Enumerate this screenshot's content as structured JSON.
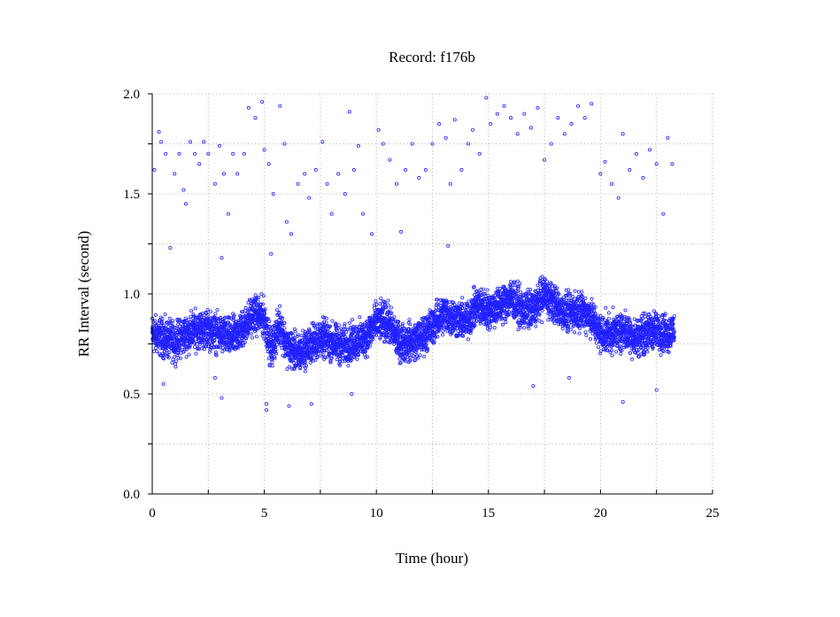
{
  "chart_data": {
    "type": "scatter",
    "title": "Record:  f176b",
    "xlabel": "Time (hour)",
    "ylabel": "RR Interval (second)",
    "xlim": [
      0,
      25
    ],
    "ylim": [
      0,
      2.0
    ],
    "x_ticks": [
      0,
      5,
      10,
      15,
      20,
      25
    ],
    "x_tick_labels": [
      "0",
      "5",
      "10",
      "15",
      "20",
      "25"
    ],
    "y_ticks": [
      0.0,
      0.5,
      1.0,
      1.5,
      2.0
    ],
    "y_tick_labels": [
      "0.0",
      "0.5",
      "1.0",
      "1.5",
      "2.0"
    ],
    "grid": true,
    "marker_color": "#2020ff",
    "series": [
      {
        "baseline_trend": [
          [
            0.0,
            0.8
          ],
          [
            0.5,
            0.78
          ],
          [
            1.0,
            0.76
          ],
          [
            1.5,
            0.8
          ],
          [
            2.0,
            0.82
          ],
          [
            2.5,
            0.82
          ],
          [
            3.0,
            0.8
          ],
          [
            3.5,
            0.78
          ],
          [
            4.0,
            0.82
          ],
          [
            4.5,
            0.9
          ],
          [
            5.0,
            0.88
          ],
          [
            5.3,
            0.72
          ],
          [
            5.7,
            0.85
          ],
          [
            6.0,
            0.74
          ],
          [
            6.5,
            0.7
          ],
          [
            7.0,
            0.74
          ],
          [
            7.5,
            0.78
          ],
          [
            8.0,
            0.76
          ],
          [
            8.5,
            0.74
          ],
          [
            9.0,
            0.76
          ],
          [
            9.5,
            0.78
          ],
          [
            10.0,
            0.86
          ],
          [
            10.5,
            0.86
          ],
          [
            11.0,
            0.76
          ],
          [
            11.5,
            0.76
          ],
          [
            12.0,
            0.78
          ],
          [
            12.5,
            0.84
          ],
          [
            13.0,
            0.9
          ],
          [
            13.5,
            0.88
          ],
          [
            14.0,
            0.86
          ],
          [
            14.5,
            0.94
          ],
          [
            15.0,
            0.92
          ],
          [
            15.5,
            0.94
          ],
          [
            16.0,
            0.98
          ],
          [
            16.5,
            0.92
          ],
          [
            17.0,
            0.92
          ],
          [
            17.5,
            1.0
          ],
          [
            18.0,
            0.94
          ],
          [
            18.5,
            0.9
          ],
          [
            19.0,
            0.92
          ],
          [
            19.5,
            0.9
          ],
          [
            20.0,
            0.8
          ],
          [
            20.5,
            0.8
          ],
          [
            21.0,
            0.82
          ],
          [
            21.5,
            0.78
          ],
          [
            22.0,
            0.8
          ],
          [
            22.5,
            0.82
          ],
          [
            23.0,
            0.8
          ],
          [
            23.3,
            0.82
          ]
        ],
        "outliers": [
          [
            0.1,
            1.62
          ],
          [
            0.3,
            1.81
          ],
          [
            0.4,
            1.76
          ],
          [
            0.6,
            1.7
          ],
          [
            0.8,
            1.23
          ],
          [
            1.0,
            1.6
          ],
          [
            1.2,
            1.7
          ],
          [
            1.4,
            1.52
          ],
          [
            1.5,
            1.45
          ],
          [
            1.7,
            1.76
          ],
          [
            1.9,
            1.7
          ],
          [
            2.1,
            1.65
          ],
          [
            2.3,
            1.76
          ],
          [
            2.5,
            1.7
          ],
          [
            2.8,
            1.55
          ],
          [
            3.0,
            1.74
          ],
          [
            3.2,
            1.6
          ],
          [
            3.4,
            1.4
          ],
          [
            3.6,
            1.7
          ],
          [
            3.8,
            1.6
          ],
          [
            4.1,
            1.7
          ],
          [
            4.3,
            1.93
          ],
          [
            4.6,
            1.88
          ],
          [
            4.9,
            1.96
          ],
          [
            5.0,
            1.72
          ],
          [
            5.2,
            1.65
          ],
          [
            5.4,
            1.5
          ],
          [
            5.7,
            1.94
          ],
          [
            5.9,
            1.75
          ],
          [
            6.0,
            1.36
          ],
          [
            6.2,
            1.3
          ],
          [
            6.5,
            1.55
          ],
          [
            6.8,
            1.6
          ],
          [
            7.0,
            1.48
          ],
          [
            7.3,
            1.62
          ],
          [
            7.6,
            1.76
          ],
          [
            7.8,
            1.55
          ],
          [
            8.0,
            1.4
          ],
          [
            8.3,
            1.6
          ],
          [
            8.6,
            1.5
          ],
          [
            8.8,
            1.91
          ],
          [
            9.0,
            1.62
          ],
          [
            9.2,
            1.74
          ],
          [
            9.4,
            1.4
          ],
          [
            9.8,
            1.3
          ],
          [
            10.1,
            1.82
          ],
          [
            10.3,
            1.75
          ],
          [
            10.6,
            1.67
          ],
          [
            10.9,
            1.55
          ],
          [
            11.1,
            1.31
          ],
          [
            11.3,
            1.62
          ],
          [
            11.6,
            1.75
          ],
          [
            11.9,
            1.58
          ],
          [
            12.2,
            1.62
          ],
          [
            12.5,
            1.75
          ],
          [
            12.8,
            1.85
          ],
          [
            13.1,
            1.78
          ],
          [
            13.3,
            1.55
          ],
          [
            13.5,
            1.87
          ],
          [
            13.8,
            1.62
          ],
          [
            14.1,
            1.75
          ],
          [
            14.3,
            1.82
          ],
          [
            14.6,
            1.7
          ],
          [
            14.9,
            1.98
          ],
          [
            15.1,
            1.85
          ],
          [
            15.4,
            1.9
          ],
          [
            15.7,
            1.94
          ],
          [
            16.0,
            1.88
          ],
          [
            16.3,
            1.8
          ],
          [
            16.6,
            1.9
          ],
          [
            16.9,
            1.83
          ],
          [
            17.2,
            1.93
          ],
          [
            17.5,
            1.67
          ],
          [
            17.8,
            1.75
          ],
          [
            18.1,
            1.88
          ],
          [
            18.4,
            1.8
          ],
          [
            18.7,
            1.85
          ],
          [
            19.0,
            1.94
          ],
          [
            19.3,
            1.88
          ],
          [
            19.6,
            1.95
          ],
          [
            20.0,
            1.6
          ],
          [
            20.2,
            1.66
          ],
          [
            20.5,
            1.55
          ],
          [
            20.8,
            1.48
          ],
          [
            21.0,
            1.8
          ],
          [
            21.3,
            1.62
          ],
          [
            21.6,
            1.7
          ],
          [
            21.9,
            1.58
          ],
          [
            22.2,
            1.72
          ],
          [
            22.5,
            1.65
          ],
          [
            22.8,
            1.4
          ],
          [
            23.0,
            1.78
          ],
          [
            23.2,
            1.65
          ],
          [
            3.1,
            1.18
          ],
          [
            5.3,
            1.2
          ],
          [
            13.2,
            1.24
          ],
          [
            0.5,
            0.55
          ],
          [
            3.1,
            0.48
          ],
          [
            5.1,
            0.45
          ],
          [
            5.1,
            0.42
          ],
          [
            6.1,
            0.44
          ],
          [
            7.1,
            0.45
          ],
          [
            8.9,
            0.5
          ],
          [
            17.0,
            0.54
          ],
          [
            21.0,
            0.46
          ],
          [
            22.5,
            0.52
          ],
          [
            2.8,
            0.58
          ],
          [
            18.6,
            0.58
          ]
        ]
      }
    ]
  }
}
